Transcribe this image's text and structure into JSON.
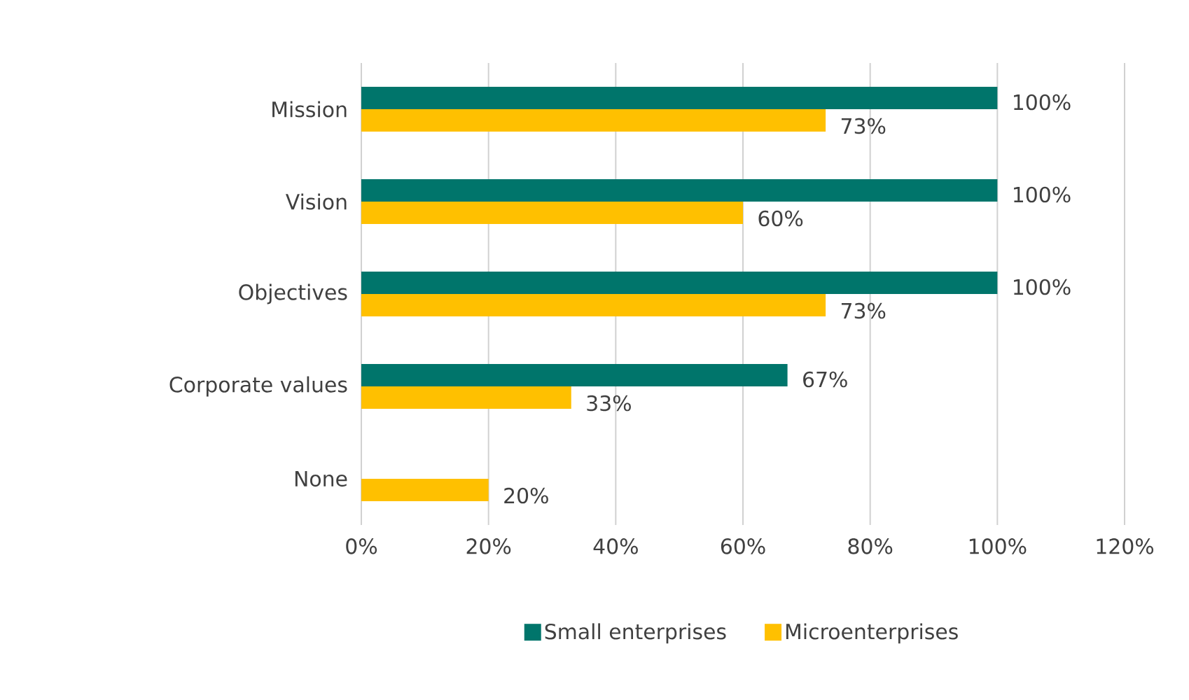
{
  "chart_data": {
    "type": "bar",
    "orientation": "horizontal",
    "categories": [
      "Mission",
      "Vision",
      "Objectives",
      "Corporate values",
      "None"
    ],
    "series": [
      {
        "name": "Small enterprises",
        "color": "#00756b",
        "values": [
          100,
          100,
          100,
          67,
          null
        ],
        "value_labels": [
          "100%",
          "100%",
          "100%",
          "67%",
          null
        ]
      },
      {
        "name": "Microenterprises",
        "color": "#ffc000",
        "values": [
          73,
          60,
          73,
          33,
          20
        ],
        "value_labels": [
          "73%",
          "60%",
          "73%",
          "33%",
          "20%"
        ]
      }
    ],
    "xlim": [
      0,
      120
    ],
    "xticks": [
      {
        "value": 0,
        "label": "0%"
      },
      {
        "value": 20,
        "label": "20%"
      },
      {
        "value": 40,
        "label": "40%"
      },
      {
        "value": 60,
        "label": "60%"
      },
      {
        "value": 80,
        "label": "80%"
      },
      {
        "value": 100,
        "label": "100%"
      },
      {
        "value": 120,
        "label": "120%"
      }
    ],
    "grid": "x",
    "legend": "bottom"
  }
}
